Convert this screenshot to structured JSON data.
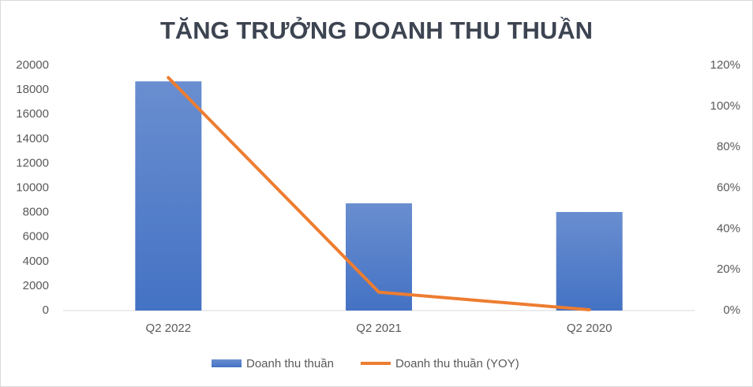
{
  "chart_data": {
    "type": "bar-line",
    "title": "TĂNG TRƯỞNG DOANH THU THUẦN",
    "categories": [
      "Q2 2022",
      "Q2 2021",
      "Q2 2020"
    ],
    "series": [
      {
        "name": "Doanh thu thuần",
        "type": "bar",
        "color": "#4472c4",
        "values": [
          18700,
          8750,
          8040
        ]
      },
      {
        "name": "Doanh thu thuần (YOY)",
        "type": "line",
        "axis": "y2",
        "color": "#ed7d31",
        "values": [
          114,
          9,
          0.4
        ]
      }
    ],
    "ylim": [
      0,
      20000
    ],
    "yticks": [
      0,
      2000,
      4000,
      6000,
      8000,
      10000,
      12000,
      14000,
      16000,
      18000,
      20000
    ],
    "y2lim": [
      0,
      120
    ],
    "y2ticks": [
      {
        "value": 0,
        "label": "0%"
      },
      {
        "value": 20,
        "label": "20%"
      },
      {
        "value": 40,
        "label": "40%"
      },
      {
        "value": 60,
        "label": "60%"
      },
      {
        "value": 80,
        "label": "80%"
      },
      {
        "value": 100,
        "label": "100%"
      },
      {
        "value": 120,
        "label": "120%"
      }
    ],
    "grid": false,
    "legend": "bottom"
  }
}
